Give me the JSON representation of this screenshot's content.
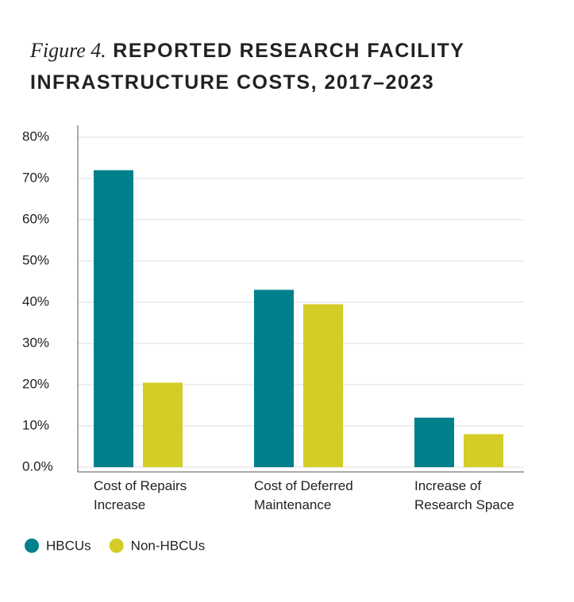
{
  "chart_data": {
    "type": "bar",
    "figure_label": "Figure 4.",
    "title": "REPORTED RESEARCH FACILITY INFRASTRUCTURE COSTS, 2017–2023",
    "categories": [
      "Cost of Repairs Increase",
      "Cost of Deferred Maintenance",
      "Increase of Research Space"
    ],
    "series": [
      {
        "name": "HBCUs",
        "color": "#00808c",
        "values": [
          72,
          43,
          12
        ]
      },
      {
        "name": "Non-HBCUs",
        "color": "#d4cd27",
        "values": [
          20.5,
          39.5,
          8
        ]
      }
    ],
    "ylim": [
      0,
      80
    ],
    "yticks": [
      {
        "value": 0,
        "label": "0.0%"
      },
      {
        "value": 10,
        "label": "10%"
      },
      {
        "value": 20,
        "label": "20%"
      },
      {
        "value": 30,
        "label": "30%"
      },
      {
        "value": 40,
        "label": "40%"
      },
      {
        "value": 50,
        "label": "50%"
      },
      {
        "value": 60,
        "label": "60%"
      },
      {
        "value": 70,
        "label": "70%"
      },
      {
        "value": 80,
        "label": "80%"
      }
    ],
    "grid": true,
    "legend": "bottom-left"
  }
}
